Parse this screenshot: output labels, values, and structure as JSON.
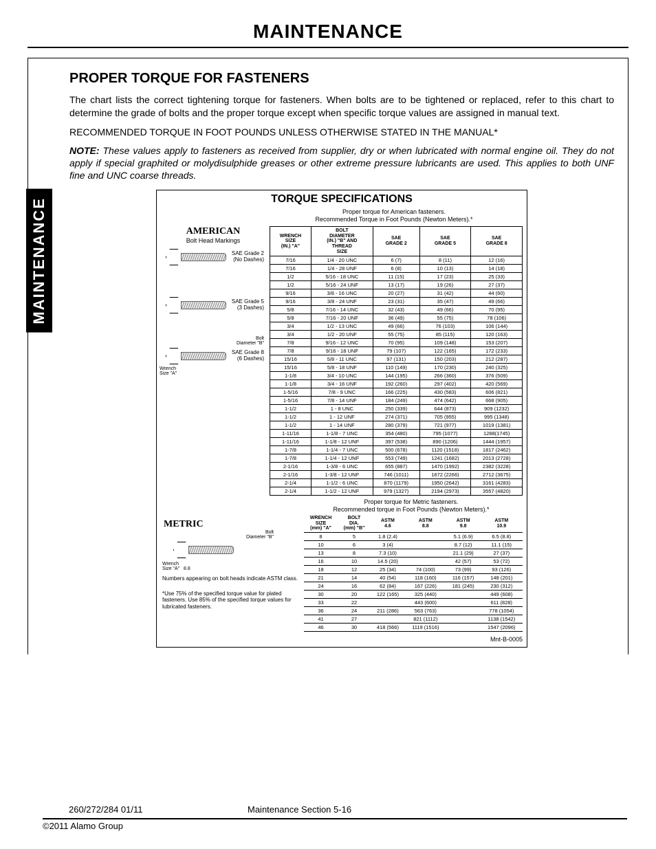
{
  "page": {
    "main_title": "MAINTENANCE",
    "side_tab": "MAINTENANCE",
    "section_head": "PROPER TORQUE FOR FASTENERS",
    "para1": "The chart lists the correct tightening torque for fasteners. When bolts are to be tightened or replaced, refer to this chart to determine the grade of bolts and the proper torque except when specific torque values are assigned in manual text.",
    "rec_line": "RECOMMENDED TORQUE IN FOOT POUNDS UNLESS OTHERWISE STATED IN THE MANUAL*",
    "note_label": "NOTE:",
    "note_body": " These values apply to fasteners as received from supplier, dry or when lubricated with normal engine oil. They do not apply if special graphited or molydisulphide greases or other extreme pressure lubricants are used. This applies to both UNF fine and UNC coarse threads.",
    "footer_left": "260/272/284  01/11",
    "footer_center": "Maintenance Section 5-16",
    "footer_bottom": "©2011 Alamo Group"
  },
  "spec": {
    "title": "TORQUE SPECIFICATIONS",
    "sub1": "Proper torque for American fasteners.",
    "sub2": "Recommended Torque in Foot Pounds (Newton Meters).*",
    "american_head": "AMERICAN",
    "bh_mark": "Bolt Head Markings",
    "grades": [
      {
        "name": "SAE Grade 2",
        "sub": "(No Dashes)"
      },
      {
        "name": "SAE Grade 5",
        "sub": "(3 Dashes)"
      },
      {
        "name": "SAE Grade 8",
        "sub": "(6 Dashes)"
      }
    ],
    "dia_labels": {
      "bolt": "Bolt",
      "dia": "Diameter \"B\"",
      "wrench": "Wrench",
      "size": "Size \"A\""
    },
    "mnt_code": "Mnt-B-0005"
  },
  "american_table": {
    "headers": [
      "WRENCH SIZE (IN.) \"A\"",
      "BOLT DIAMETER (IN.) \"B\" AND THREAD SIZE",
      "SAE GRADE 2",
      "SAE GRADE 5",
      "SAE GRADE 8"
    ],
    "rows": [
      [
        "7/16",
        "1/4 - 20 UNC",
        "6 (7)",
        "8 (11)",
        "12 (16)"
      ],
      [
        "7/16",
        "1/4 - 28 UNF",
        "6 (8)",
        "10 (13)",
        "14 (18)"
      ],
      [
        "1/2",
        "5/16 - 18 UNC",
        "11 (15)",
        "17 (23)",
        "25 (33)"
      ],
      [
        "1/2",
        "5/16 - 24 UNF",
        "13 (17)",
        "19 (26)",
        "27 (37)"
      ],
      [
        "9/16",
        "3/8 - 16 UNC",
        "20 (27)",
        "31 (42)",
        "44 (60)"
      ],
      [
        "9/16",
        "3/8 - 24 UNF",
        "23 (31)",
        "35 (47)",
        "49 (66)"
      ],
      [
        "5/8",
        "7/16 - 14 UNC",
        "32 (43)",
        "49 (66)",
        "70 (95)"
      ],
      [
        "5/8",
        "7/16 - 20 UNF",
        "36 (49)",
        "55 (75)",
        "78 (106)"
      ],
      [
        "3/4",
        "1/2 - 13 UNC",
        "49 (66)",
        "76 (103)",
        "106 (144)"
      ],
      [
        "3/4",
        "1/2 - 20 UNF",
        "55 (75)",
        "85 (115)",
        "120 (163)"
      ],
      [
        "7/8",
        "9/16 - 12 UNC",
        "70 (95)",
        "109 (148)",
        "153 (207)"
      ],
      [
        "7/8",
        "9/16 - 18 UNF",
        "79 (107)",
        "122 (165)",
        "172 (233)"
      ],
      [
        "15/16",
        "5/8 - 11 UNC",
        "97 (131)",
        "150 (203)",
        "212 (287)"
      ],
      [
        "15/16",
        "5/8 - 18 UNF",
        "110 (149)",
        "170 (230)",
        "240 (325)"
      ],
      [
        "1-1/8",
        "3/4 - 10 UNC",
        "144 (195)",
        "266 (360)",
        "376 (509)"
      ],
      [
        "1-1/8",
        "3/4 - 16 UNF",
        "192 (260)",
        "297 (402)",
        "420 (569)"
      ],
      [
        "1-5/16",
        "7/8 - 9 UNC",
        "166 (225)",
        "430 (583)",
        "606 (821)"
      ],
      [
        "1-5/16",
        "7/8 - 14 UNF",
        "184 (249)",
        "474 (642)",
        "668 (905)"
      ],
      [
        "1-1/2",
        "1 - 8 UNC",
        "250 (339)",
        "644 (873)",
        "909 (1232)"
      ],
      [
        "1-1/2",
        "1 - 12 UNF",
        "274 (371)",
        "705 (955)",
        "995 (1348)"
      ],
      [
        "1-1/2",
        "1 - 14 UNF",
        "280 (379)",
        "721 (977)",
        "1019 (1381)"
      ],
      [
        "1-11/16",
        "1-1/8 - 7 UNC",
        "354 (480)",
        "795 (1077)",
        "1288(1745)"
      ],
      [
        "1-11/16",
        "1-1/8 - 12 UNF",
        "397 (538)",
        "890 (1206)",
        "1444 (1957)"
      ],
      [
        "1-7/8",
        "1-1/4 - 7 UNC",
        "500 (678)",
        "1120 (1518)",
        "1817 (2462)"
      ],
      [
        "1-7/8",
        "1-1/4 - 12 UNF",
        "553 (749)",
        "1241 (1682)",
        "2013 (2728)"
      ],
      [
        "2-1/16",
        "1-3/8 - 6 UNC",
        "655 (887)",
        "1470 (1992)",
        "2382 (3228)"
      ],
      [
        "2-1/16",
        "1-3/8 - 12 UNF",
        "746 (1011)",
        "1672 (2266)",
        "2712 (3675)"
      ],
      [
        "2-1/4",
        "1-1/2 - 6 UNC",
        "870 (1179)",
        "1950 (2642)",
        "3161 (4283)"
      ],
      [
        "2-1/4",
        "1-1/2 - 12 UNF",
        "979 (1327)",
        "2194 (2973)",
        "3557 (4820)"
      ]
    ]
  },
  "metric": {
    "head": "METRIC",
    "sub1": "Proper torque for Metric fasteners.",
    "sub2": "Recommended torque in Foot Pounds (Newton Meters).*",
    "note1": "Numbers appearing on bolt heads indicate ASTM class.",
    "note2": "*Use 75% of the specified torque value for plated fasteners. Use 85% of the specified torque values for lubricated fasteners.",
    "headers": [
      "WRENCH SIZE (mm) \"A\"",
      "BOLT DIA. (mm) \"B\"",
      "ASTM 4.6",
      "ASTM 8.8",
      "ASTM 9.8",
      "ASTM 10.9"
    ],
    "rows": [
      [
        "8",
        "5",
        "1.8 (2.4)",
        "",
        "5.1 (6.9)",
        "6.5 (8.8)"
      ],
      [
        "10",
        "6",
        "3 (4)",
        "",
        "8.7 (12)",
        "11.1 (15)"
      ],
      [
        "13",
        "8",
        "7.3 (10)",
        "",
        "21.1 (29)",
        "27 (37)"
      ],
      [
        "16",
        "10",
        "14.5 (20)",
        "",
        "42 (57)",
        "53 (72)"
      ],
      [
        "18",
        "12",
        "25 (34)",
        "74 (100)",
        "73 (99)",
        "93 (126)"
      ],
      [
        "21",
        "14",
        "40 (54)",
        "118 (160)",
        "116 (157)",
        "148 (201)"
      ],
      [
        "24",
        "16",
        "62 (84)",
        "167 (226)",
        "181 (245)",
        "230 (312)"
      ],
      [
        "30",
        "20",
        "122 (165)",
        "325 (440)",
        "",
        "449 (608)"
      ],
      [
        "33",
        "22",
        "",
        "443 (600)",
        "",
        "611 (828)"
      ],
      [
        "36",
        "24",
        "211 (286)",
        "563 (763)",
        "",
        "778 (1054)"
      ],
      [
        "41",
        "27",
        "",
        "821 (1112)",
        "",
        "1138 (1542)"
      ],
      [
        "46",
        "30",
        "418 (566)",
        "1119 (1516)",
        "",
        "1547 (2096)"
      ]
    ]
  },
  "colors": {
    "text": "#000000",
    "bg": "#ffffff",
    "tab_bg": "#000000",
    "tab_fg": "#ffffff"
  }
}
